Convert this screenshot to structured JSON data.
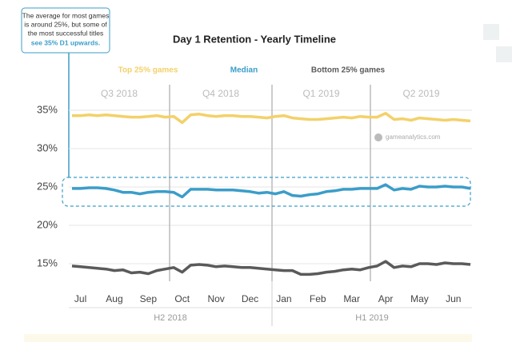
{
  "chart_data": {
    "type": "line",
    "title": "Day 1 Retention - Yearly Timeline",
    "annotation": [
      "The average for most games",
      "is around 25%, but some of",
      "the most successful titles"
    ],
    "annotation_highlight": "see 35% D1 upwards.",
    "watermark": "gameanalytics.com",
    "quarters": [
      "Q3 2018",
      "Q4 2018",
      "Q1 2019",
      "Q2 2019"
    ],
    "halves": [
      "H2 2018",
      "H1 2019"
    ],
    "categories": [
      null,
      "Jul",
      null,
      null,
      null,
      "Aug",
      null,
      null,
      null,
      "Sep",
      null,
      null,
      null,
      "Oct",
      null,
      null,
      null,
      "Nov",
      null,
      null,
      null,
      "Dec",
      null,
      null,
      null,
      "Jan",
      null,
      null,
      null,
      "Feb",
      null,
      null,
      null,
      "Mar",
      null,
      null,
      null,
      "Apr",
      null,
      null,
      null,
      "May",
      null,
      null,
      null,
      "Jun",
      null,
      null
    ],
    "series": [
      {
        "name": "Top 25% games",
        "color": "#f3d16a",
        "values": [
          34.3,
          34.3,
          34.4,
          34.3,
          34.4,
          34.3,
          34.2,
          34.1,
          34.1,
          34.2,
          34.3,
          34.1,
          34.2,
          33.4,
          34.4,
          34.5,
          34.3,
          34.2,
          34.3,
          34.3,
          34.2,
          34.2,
          34.1,
          34.0,
          34.2,
          34.3,
          34.0,
          33.9,
          33.8,
          33.8,
          33.9,
          34.0,
          34.1,
          34.0,
          34.2,
          34.1,
          34.1,
          34.6,
          33.8,
          33.9,
          33.7,
          34.0,
          33.9,
          33.8,
          33.7,
          33.8,
          33.7,
          33.6
        ]
      },
      {
        "name": "Median",
        "color": "#3b9dc9",
        "values": [
          24.8,
          24.8,
          24.9,
          24.9,
          24.8,
          24.6,
          24.3,
          24.3,
          24.1,
          24.3,
          24.4,
          24.4,
          24.3,
          23.7,
          24.7,
          24.7,
          24.7,
          24.6,
          24.6,
          24.6,
          24.5,
          24.4,
          24.2,
          24.3,
          24.1,
          24.4,
          23.9,
          23.8,
          24.0,
          24.1,
          24.4,
          24.5,
          24.7,
          24.7,
          24.8,
          24.8,
          24.8,
          25.3,
          24.6,
          24.8,
          24.7,
          25.1,
          25.0,
          25.0,
          25.1,
          25.0,
          25.0,
          24.8
        ]
      },
      {
        "name": "Bottom 25% games",
        "color": "#5a5a5a",
        "values": [
          14.7,
          14.6,
          14.5,
          14.4,
          14.3,
          14.1,
          14.2,
          13.8,
          13.9,
          13.7,
          14.1,
          14.3,
          14.5,
          13.9,
          14.8,
          14.9,
          14.8,
          14.6,
          14.7,
          14.6,
          14.5,
          14.5,
          14.4,
          14.3,
          14.2,
          14.1,
          14.1,
          13.6,
          13.6,
          13.7,
          13.9,
          14.0,
          14.2,
          14.3,
          14.2,
          14.5,
          14.7,
          15.3,
          14.5,
          14.7,
          14.6,
          15.0,
          15.0,
          14.9,
          15.1,
          15.0,
          15.0,
          14.9
        ]
      }
    ],
    "ylim": [
      12.5,
      37.5
    ],
    "yticks": [
      {
        "value": 15,
        "label": "15%"
      },
      {
        "value": 20,
        "label": "20%"
      },
      {
        "value": 25,
        "label": "25%"
      },
      {
        "value": 30,
        "label": "30%"
      },
      {
        "value": 35,
        "label": "35%"
      }
    ],
    "grid": true
  }
}
